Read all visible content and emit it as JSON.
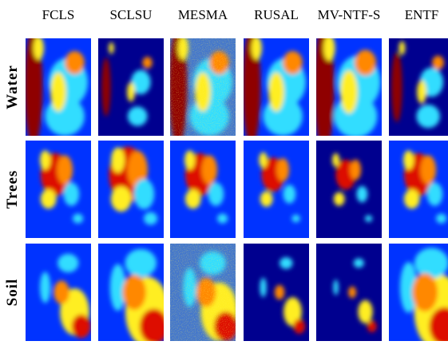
{
  "columns": [
    "FCLS",
    "SCLSU",
    "MESMA",
    "RUSAL",
    "MV-NTF-S",
    "ENTF"
  ],
  "rows": [
    "Water",
    "Trees",
    "Soil"
  ]
}
